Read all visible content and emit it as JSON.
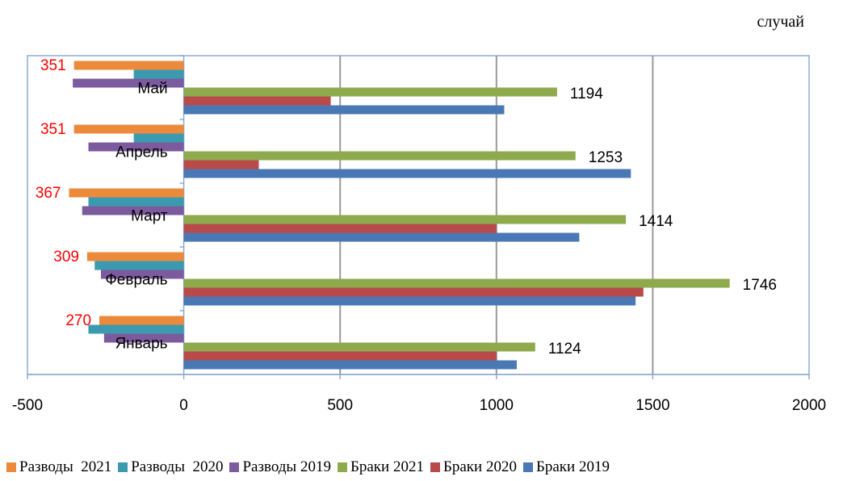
{
  "chart_data": {
    "type": "bar",
    "orientation": "horizontal",
    "unit_label": "случай",
    "categories": [
      "Январь",
      "Февраль",
      "Март",
      "Апрель",
      "Май"
    ],
    "xlim": [
      -500,
      2000
    ],
    "xticks": [
      "-500",
      "0",
      "500",
      "1000",
      "1500",
      "2000"
    ],
    "grid": true,
    "legend_position": "bottom",
    "series": [
      {
        "name": "Разводы  2021",
        "color": "#ec8a3c",
        "values": [
          -270,
          -309,
          -367,
          -351,
          -351
        ],
        "data_labels": [
          "270",
          "309",
          "367",
          "351",
          "351"
        ]
      },
      {
        "name": "Разводы  2020",
        "color": "#3b9ab0",
        "values": [
          -305,
          -285,
          -305,
          -160,
          -160
        ]
      },
      {
        "name": "Разводы 2019",
        "color": "#7c5a9e",
        "values": [
          -255,
          -265,
          -325,
          -305,
          -355
        ]
      },
      {
        "name": "Браки 2021",
        "color": "#8faa4c",
        "values": [
          1124,
          1746,
          1414,
          1253,
          1194
        ],
        "data_labels": [
          "1124",
          "1746",
          "1414",
          "1253",
          "1194"
        ]
      },
      {
        "name": "Браки 2020",
        "color": "#b84a4a",
        "values": [
          1000,
          1470,
          1000,
          240,
          470
        ]
      },
      {
        "name": "Браки 2019",
        "color": "#4a78b4",
        "values": [
          1065,
          1445,
          1265,
          1430,
          1025
        ]
      }
    ]
  }
}
